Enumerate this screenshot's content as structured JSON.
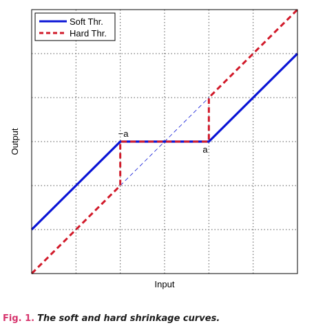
{
  "chart_data": {
    "type": "line",
    "title": "",
    "xlabel": "Input",
    "ylabel": "Output",
    "xlim": [
      -3,
      3
    ],
    "ylim": [
      -3,
      3
    ],
    "grid": true,
    "threshold_a": 1,
    "legend_position": "top-left",
    "annotations": [
      {
        "text": "−a",
        "x": -1,
        "y": 0
      },
      {
        "text": "a",
        "x": 1,
        "y": 0
      }
    ],
    "series": [
      {
        "name": "Soft Thr.",
        "color": "#0a14d6",
        "style": "solid",
        "x": [
          -3,
          -1,
          1,
          3
        ],
        "y": [
          -2,
          0,
          0,
          2
        ]
      },
      {
        "name": "Hard Thr.",
        "color": "#d11a2a",
        "style": "dashed",
        "x": [
          -3,
          -1,
          -1,
          1,
          1,
          3
        ],
        "y": [
          -3,
          -1,
          0,
          0,
          1,
          3
        ]
      },
      {
        "name": "",
        "color": "#0a14d6",
        "style": "thin-dashed",
        "x": [
          -1,
          1
        ],
        "y": [
          -1,
          1
        ]
      }
    ]
  },
  "caption": {
    "label": "Fig. 1.",
    "text": "The soft and hard shrinkage curves."
  }
}
